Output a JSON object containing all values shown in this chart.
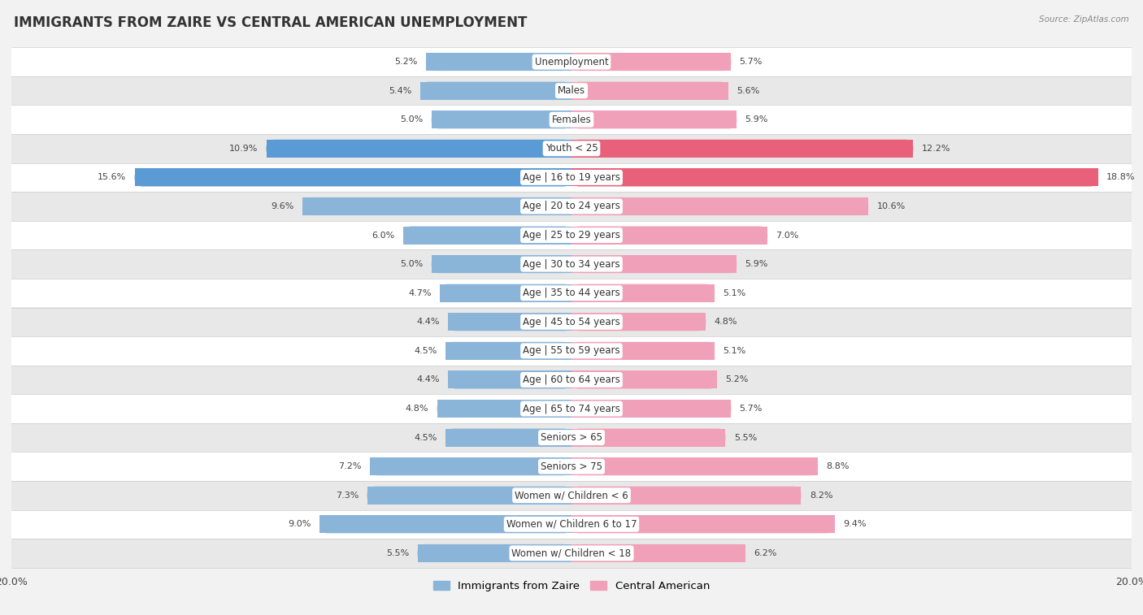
{
  "title": "IMMIGRANTS FROM ZAIRE VS CENTRAL AMERICAN UNEMPLOYMENT",
  "source": "Source: ZipAtlas.com",
  "categories": [
    "Unemployment",
    "Males",
    "Females",
    "Youth < 25",
    "Age | 16 to 19 years",
    "Age | 20 to 24 years",
    "Age | 25 to 29 years",
    "Age | 30 to 34 years",
    "Age | 35 to 44 years",
    "Age | 45 to 54 years",
    "Age | 55 to 59 years",
    "Age | 60 to 64 years",
    "Age | 65 to 74 years",
    "Seniors > 65",
    "Seniors > 75",
    "Women w/ Children < 6",
    "Women w/ Children 6 to 17",
    "Women w/ Children < 18"
  ],
  "left_values": [
    5.2,
    5.4,
    5.0,
    10.9,
    15.6,
    9.6,
    6.0,
    5.0,
    4.7,
    4.4,
    4.5,
    4.4,
    4.8,
    4.5,
    7.2,
    7.3,
    9.0,
    5.5
  ],
  "right_values": [
    5.7,
    5.6,
    5.9,
    12.2,
    18.8,
    10.6,
    7.0,
    5.9,
    5.1,
    4.8,
    5.1,
    5.2,
    5.7,
    5.5,
    8.8,
    8.2,
    9.4,
    6.2
  ],
  "left_color": "#8ab4d8",
  "right_color": "#f0a0b8",
  "left_highlight_color": "#5b9bd5",
  "right_highlight_color": "#e8607a",
  "highlight_rows": [
    3,
    4
  ],
  "bar_height": 0.62,
  "xlim": 20.0,
  "bg_color": "#f2f2f2",
  "row_bg_light": "#ffffff",
  "row_bg_dark": "#e8e8e8",
  "legend_left": "Immigrants from Zaire",
  "legend_right": "Central American",
  "title_fontsize": 12,
  "label_fontsize": 8.5,
  "value_fontsize": 8.0
}
